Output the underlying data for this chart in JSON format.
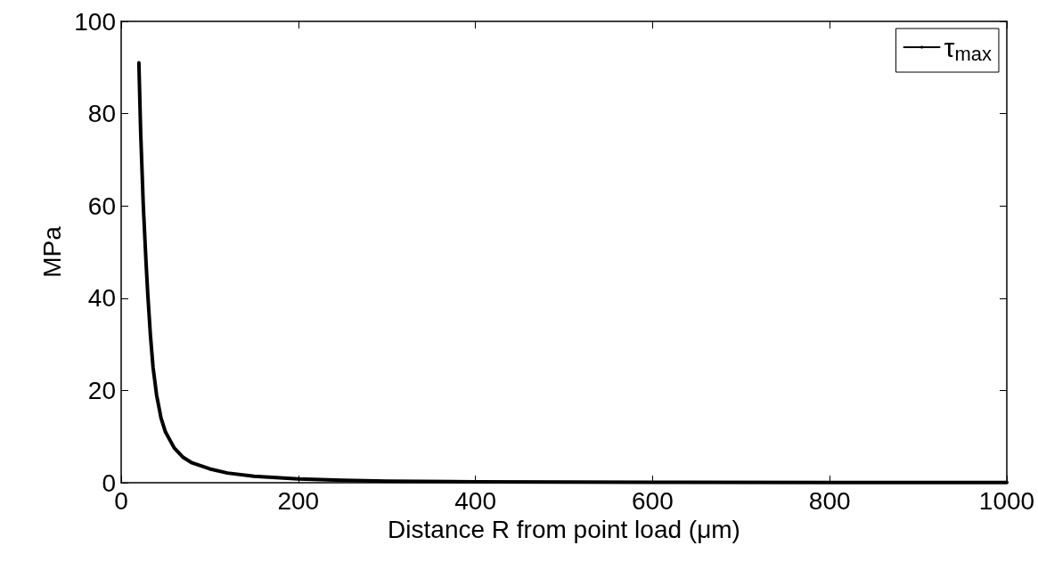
{
  "chart_data": {
    "type": "line",
    "xlabel": "Distance R from point load (μm)",
    "ylabel": "MPa",
    "series": [
      {
        "name": "τ$_{max}$",
        "color": "#000000",
        "x": [
          20,
          22,
          25,
          28,
          30,
          33,
          36,
          40,
          45,
          50,
          60,
          70,
          80,
          100,
          120,
          150,
          200,
          250,
          300,
          400,
          500,
          600,
          800,
          1000
        ],
        "values": [
          91,
          76,
          60,
          48,
          41,
          32,
          25,
          19,
          14,
          11,
          7.5,
          5.5,
          4.3,
          3,
          2.1,
          1.4,
          0.8,
          0.55,
          0.35,
          0.2,
          0.13,
          0.1,
          0.05,
          0.04
        ]
      }
    ],
    "xlim": [
      0,
      1000
    ],
    "xticks": [
      0,
      200,
      400,
      600,
      800,
      1000
    ],
    "ylim": [
      0,
      100
    ],
    "yticks": [
      0,
      20,
      40,
      60,
      80,
      100
    ],
    "grid": false,
    "legend": "top right",
    "marker": "none",
    "line_style": "solid"
  }
}
